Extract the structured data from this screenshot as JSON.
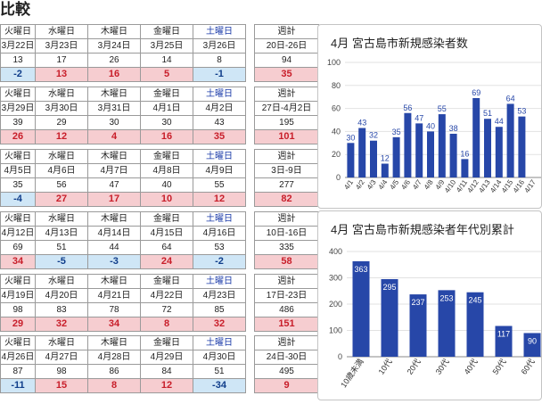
{
  "page_title": "比較",
  "weeks": [
    {
      "days": [
        "火曜日",
        "水曜日",
        "木曜日",
        "金曜日",
        "土曜日"
      ],
      "total_label": "週計",
      "dates": [
        "3月22日",
        "3月23日",
        "3月24日",
        "3月25日",
        "3月26日"
      ],
      "total_date": "20日-26日",
      "counts": [
        "13",
        "17",
        "26",
        "14",
        "8"
      ],
      "total_count": "94",
      "diffs": [
        "-2",
        "13",
        "16",
        "5",
        "-1"
      ],
      "total_diff": "35"
    },
    {
      "days": [
        "火曜日",
        "水曜日",
        "木曜日",
        "金曜日",
        "土曜日"
      ],
      "total_label": "週計",
      "dates": [
        "3月29日",
        "3月30日",
        "3月31日",
        "4月1日",
        "4月2日"
      ],
      "total_date": "27日-4月2日",
      "counts": [
        "39",
        "29",
        "30",
        "30",
        "43"
      ],
      "total_count": "195",
      "diffs": [
        "26",
        "12",
        "4",
        "16",
        "35"
      ],
      "total_diff": "101"
    },
    {
      "days": [
        "火曜日",
        "水曜日",
        "木曜日",
        "金曜日",
        "土曜日"
      ],
      "total_label": "週計",
      "dates": [
        "4月5日",
        "4月6日",
        "4月7日",
        "4月8日",
        "4月9日"
      ],
      "total_date": "3日-9日",
      "counts": [
        "35",
        "56",
        "47",
        "40",
        "55"
      ],
      "total_count": "277",
      "diffs": [
        "-4",
        "27",
        "17",
        "10",
        "12"
      ],
      "total_diff": "82"
    },
    {
      "days": [
        "火曜日",
        "水曜日",
        "木曜日",
        "金曜日",
        "土曜日"
      ],
      "total_label": "週計",
      "dates": [
        "4月12日",
        "4月13日",
        "4月14日",
        "4月15日",
        "4月16日"
      ],
      "total_date": "10日-16日",
      "counts": [
        "69",
        "51",
        "44",
        "64",
        "53"
      ],
      "total_count": "335",
      "diffs": [
        "34",
        "-5",
        "-3",
        "24",
        "-2"
      ],
      "total_diff": "58"
    },
    {
      "days": [
        "火曜日",
        "水曜日",
        "木曜日",
        "金曜日",
        "土曜日"
      ],
      "total_label": "週計",
      "dates": [
        "4月19日",
        "4月20日",
        "4月21日",
        "4月22日",
        "4月23日"
      ],
      "total_date": "17日-23日",
      "counts": [
        "98",
        "83",
        "78",
        "72",
        "85"
      ],
      "total_count": "486",
      "diffs": [
        "29",
        "32",
        "34",
        "8",
        "32"
      ],
      "total_diff": "151"
    },
    {
      "days": [
        "火曜日",
        "水曜日",
        "木曜日",
        "金曜日",
        "土曜日"
      ],
      "total_label": "週計",
      "dates": [
        "4月26日",
        "4月27日",
        "4月28日",
        "4月29日",
        "4月30日"
      ],
      "total_date": "24日-30日",
      "counts": [
        "87",
        "98",
        "86",
        "84",
        "51"
      ],
      "total_count": "495",
      "diffs": [
        "-11",
        "15",
        "8",
        "12",
        "-34"
      ],
      "total_diff": "9"
    }
  ],
  "colors": {
    "positive_bg": "#f6cdd0",
    "positive_text": "#c81e2a",
    "negative_bg": "#cfe6f6",
    "negative_text": "#0f3d8a",
    "bar": "#2747a8",
    "saturday_text": "#1a3aa8"
  },
  "chart_data": [
    {
      "type": "bar",
      "title": "4月 宮古島市新規感染者数",
      "xlabel": "",
      "ylabel": "",
      "ylim": [
        0,
        100
      ],
      "yticks": [
        "0",
        "20",
        "40",
        "60",
        "80",
        "100"
      ],
      "categories": [
        "4/1",
        "4/2",
        "4/3",
        "4/4",
        "4/5",
        "4/6",
        "4/7",
        "4/8",
        "4/9",
        "4/10",
        "4/11",
        "4/12",
        "4/13",
        "4/14",
        "4/15",
        "4/16",
        "4/17"
      ],
      "values": [
        30,
        43,
        32,
        12,
        35,
        56,
        47,
        40,
        55,
        38,
        16,
        69,
        51,
        44,
        64,
        53,
        null
      ],
      "value_labels": [
        "30",
        "43",
        "32",
        "12",
        "35",
        "56",
        "47",
        "40",
        "55",
        "38",
        "16",
        "69",
        "51",
        "44",
        "64",
        "53",
        ""
      ]
    },
    {
      "type": "bar",
      "title": "4月 宮古島市新規感染者年代別累計",
      "xlabel": "",
      "ylabel": "",
      "ylim": [
        0,
        400
      ],
      "yticks": [
        "0",
        "100",
        "200",
        "300",
        "400"
      ],
      "categories": [
        "10歳未満",
        "10代",
        "20代",
        "30代",
        "40代",
        "50代",
        "60代"
      ],
      "values": [
        363,
        295,
        237,
        253,
        245,
        117,
        90
      ],
      "value_labels": [
        "363",
        "295",
        "237",
        "253",
        "245",
        "117",
        "90"
      ]
    }
  ]
}
